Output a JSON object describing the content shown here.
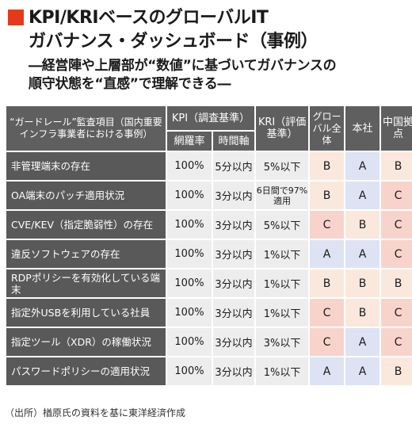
{
  "title": {
    "line1": "KPI/KRIベースのグローバルIT",
    "line2": "ガバナンス・ダッシュボード（事例）"
  },
  "subtitle": {
    "line1": "―経営陣や上層部が“数値”に基づいてガバナンスの",
    "line2": "順守状態を“直感”で理解できる―"
  },
  "table": {
    "headers": {
      "item": "“ガードレール”監査項目（国内重要インフラ事業者における事例）",
      "kpi": "KPI（調査基準）",
      "coverage": "網羅率",
      "time_axis": "時間軸",
      "kri": "KRI（評価基準）",
      "global": "グローバル全体",
      "hq": "本社",
      "china": "中国拠点"
    },
    "rows": [
      {
        "item": "非管理端末の存在",
        "coverage": "100%",
        "time": "5分以内",
        "kri": "5%以下",
        "global": "B",
        "hq": "A",
        "china": "B"
      },
      {
        "item": "OA端末のパッチ適用状況",
        "coverage": "100%",
        "time": "3分以内",
        "kri": "6日間で97%適用",
        "global": "B",
        "hq": "A",
        "china": "C"
      },
      {
        "item": "CVE/KEV（指定脆弱性）の存在",
        "coverage": "100%",
        "time": "3分以内",
        "kri": "5%以下",
        "global": "C",
        "hq": "B",
        "china": "C"
      },
      {
        "item": "違反ソフトウェアの存在",
        "coverage": "100%",
        "time": "3分以内",
        "kri": "1%以下",
        "global": "A",
        "hq": "A",
        "china": "C"
      },
      {
        "item": "RDPポリシーを有効化している端末",
        "coverage": "100%",
        "time": "3分以内",
        "kri": "1%以下",
        "global": "B",
        "hq": "B",
        "china": "B"
      },
      {
        "item": "指定外USBを利用している社員",
        "coverage": "100%",
        "time": "3分以内",
        "kri": "1%以下",
        "global": "C",
        "hq": "B",
        "china": "C"
      },
      {
        "item": "指定ツール（XDR）の稼働状況",
        "coverage": "100%",
        "time": "3分以内",
        "kri": "3%以下",
        "global": "C",
        "hq": "A",
        "china": "C"
      },
      {
        "item": "パスワードポリシーの適用状況",
        "coverage": "100%",
        "time": "3分以内",
        "kri": "1%以下",
        "global": "A",
        "hq": "A",
        "china": "B"
      }
    ]
  },
  "grade_colors": {
    "A": "#dde3f3",
    "B": "#fbe8dc",
    "C": "#f8d3cc"
  },
  "header_color": "#5f5f5f",
  "accent_color": "#e5391c",
  "note": "（出所）楢原氏の資料を基に東洋経済作成"
}
